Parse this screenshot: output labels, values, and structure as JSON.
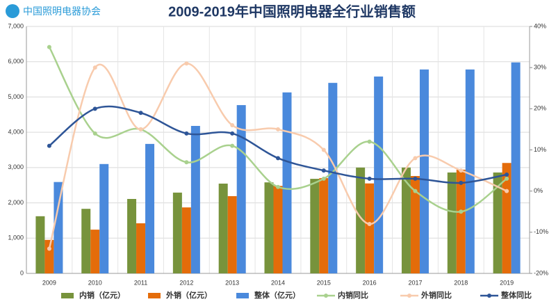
{
  "logo": "中国照明电器协会",
  "chart_data": {
    "type": "bar-line",
    "title": "2009-2019年中国照明电器全行业销售额",
    "categories": [
      "2009",
      "2010",
      "2011",
      "2012",
      "2013",
      "2014",
      "2015",
      "2016",
      "2017",
      "2018",
      "2019"
    ],
    "series": [
      {
        "name": "内销（亿元）",
        "type": "bar",
        "color": "#77933c",
        "values": [
          1620,
          1830,
          2110,
          2290,
          2545,
          2580,
          2680,
          3000,
          3000,
          2860,
          2860
        ]
      },
      {
        "name": "外销（亿元）",
        "type": "bar",
        "color": "#e46c0a",
        "values": [
          950,
          1240,
          1420,
          1870,
          2190,
          2480,
          2700,
          2550,
          2760,
          2940,
          3130
        ]
      },
      {
        "name": "整体（亿元）",
        "type": "bar",
        "color": "#4a89dc",
        "values": [
          2590,
          3100,
          3670,
          4180,
          4770,
          5130,
          5400,
          5580,
          5780,
          5780,
          5980
        ]
      },
      {
        "name": "内销同比",
        "type": "line",
        "axis": "y2",
        "color": "#a9d18e",
        "values": [
          35,
          14,
          15,
          7,
          11,
          1,
          3,
          12,
          0,
          -5,
          3
        ]
      },
      {
        "name": "外销同比",
        "type": "line",
        "axis": "y2",
        "color": "#f8cbad",
        "values": [
          -14,
          30,
          15,
          31,
          16,
          15,
          10,
          -8,
          8,
          5,
          0
        ]
      },
      {
        "name": "整体同比",
        "type": "line",
        "axis": "y2",
        "color": "#2e5597",
        "values": [
          11,
          20,
          19,
          14,
          14,
          8,
          5,
          3,
          3,
          2,
          4
        ]
      }
    ],
    "ylim": [
      0,
      7000
    ],
    "yticks": [
      0,
      {
        "value": 1000,
        "label": "1,000"
      },
      {
        "value": 2000,
        "label": "2,000"
      },
      {
        "value": 3000,
        "label": "3,000"
      },
      {
        "value": 4000,
        "label": "4,000"
      },
      {
        "value": 5000,
        "label": "5,000"
      },
      {
        "value": 6000,
        "label": "6,000"
      },
      {
        "value": 7000,
        "label": "7,000"
      }
    ],
    "y2lim": [
      -20,
      40
    ],
    "y2ticks": [
      {
        "value": -20,
        "label": "-20%"
      },
      {
        "value": -10,
        "label": "-10%"
      },
      {
        "value": 0,
        "label": "0%"
      },
      {
        "value": 10,
        "label": "10%"
      },
      {
        "value": 20,
        "label": "20%"
      },
      {
        "value": 30,
        "label": "30%"
      },
      {
        "value": 40,
        "label": "40%"
      }
    ],
    "grid": true,
    "legend": "bottom"
  }
}
